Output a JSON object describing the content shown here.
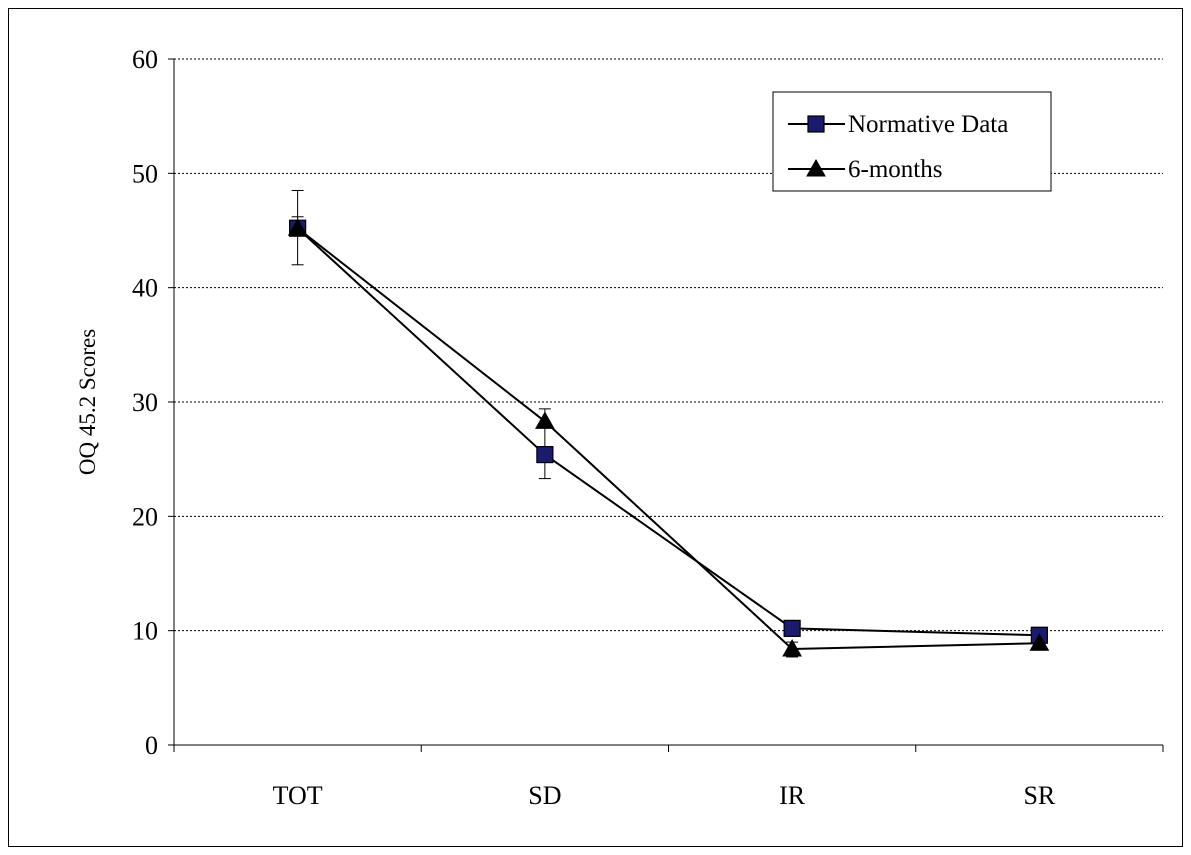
{
  "chart_data": {
    "type": "line",
    "title": "",
    "xlabel": "",
    "ylabel": "OQ 45.2  Scores",
    "ylim": [
      0,
      60
    ],
    "yticks": [
      0,
      10,
      20,
      30,
      40,
      50,
      60
    ],
    "categories": [
      "TOT",
      "SD",
      "IR",
      "SR"
    ],
    "grid": "horizontal dotted",
    "legend_position": "top-right",
    "series": [
      {
        "name": "Normative Data",
        "marker": "square",
        "marker_fill": "#1a1a6e",
        "values": [
          45.2,
          25.4,
          10.2,
          9.6
        ]
      },
      {
        "name": "6-months",
        "marker": "triangle",
        "marker_fill": "#000000",
        "values": [
          45.2,
          28.3,
          8.4,
          8.9
        ],
        "error_low": [
          42.0,
          23.3,
          7.7,
          8.3
        ],
        "error_high": [
          48.5,
          29.4,
          9.0,
          9.4
        ]
      }
    ],
    "error_caps_extra": [
      {
        "category": "TOT",
        "value": 46.2
      }
    ]
  }
}
